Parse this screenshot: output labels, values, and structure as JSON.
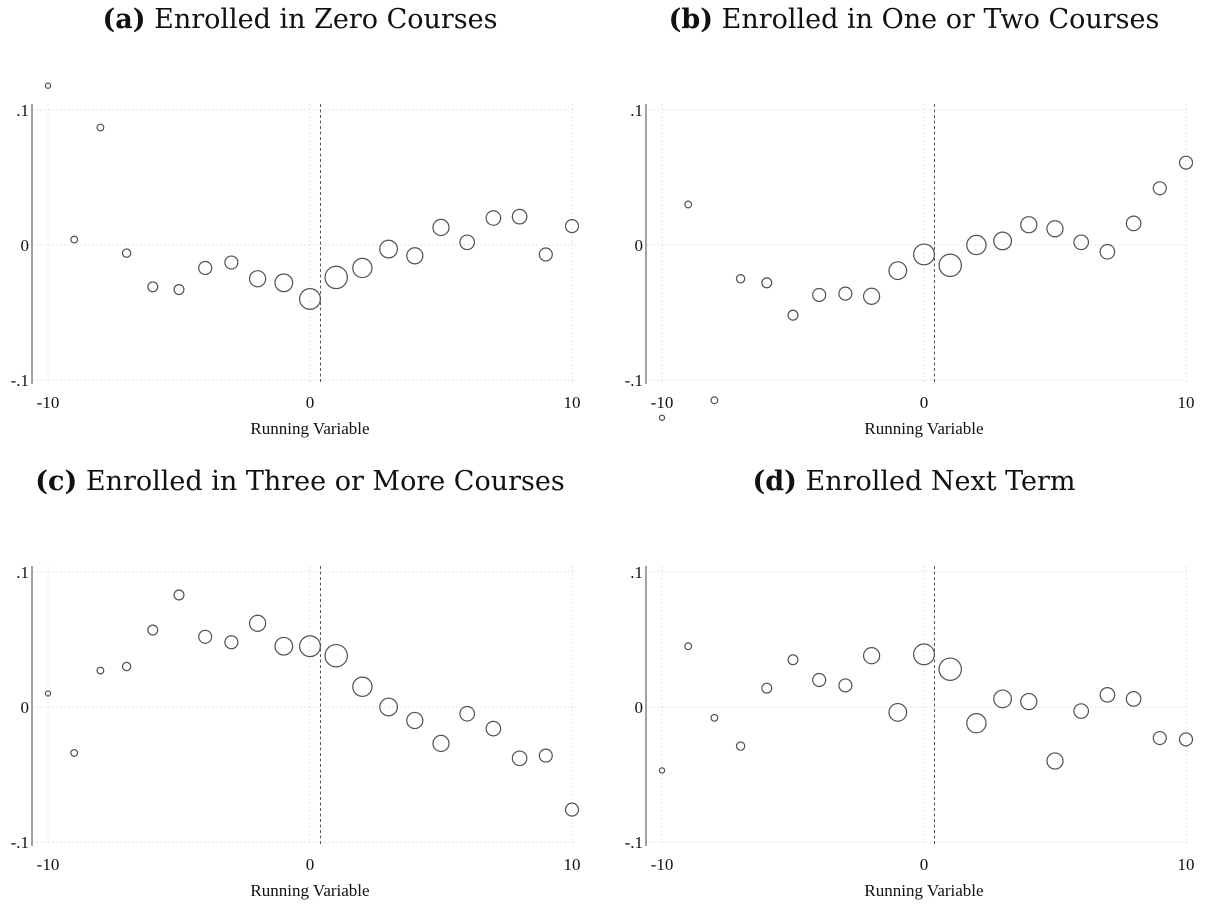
{
  "chart_data": [
    {
      "type": "scatter",
      "label": "(a)",
      "title": "Enrolled in Zero Courses",
      "xlabel": "Running Variable",
      "ylabel": "",
      "xlim": [
        -10,
        10
      ],
      "ylim": [
        -0.1,
        0.1
      ],
      "x_ticks": [
        -10,
        0,
        10
      ],
      "x_tick_labels": [
        "-10",
        "0",
        "10"
      ],
      "y_ticks": [
        -0.1,
        0,
        0.1
      ],
      "y_tick_labels": [
        "-.1",
        "0",
        ".1"
      ],
      "grid": true,
      "cutoff_x": 0.4,
      "x": [
        -10,
        -9,
        -8,
        -7,
        -6,
        -5,
        -4,
        -3,
        -2,
        -1,
        0,
        1,
        2,
        3,
        4,
        5,
        6,
        7,
        8,
        9,
        10
      ],
      "y": [
        0.118,
        0.004,
        0.087,
        -0.006,
        -0.031,
        -0.033,
        -0.017,
        -0.013,
        -0.025,
        -0.028,
        -0.04,
        -0.024,
        -0.017,
        -0.003,
        -0.008,
        0.013,
        0.002,
        0.02,
        0.021,
        -0.007,
        0.014
      ],
      "size": [
        1,
        2,
        2,
        3,
        4,
        4,
        6,
        6,
        8,
        9,
        11,
        12,
        10,
        9,
        8,
        8,
        7,
        7,
        7,
        6,
        6
      ]
    },
    {
      "type": "scatter",
      "label": "(b)",
      "title": "Enrolled in One or Two Courses",
      "xlabel": "Running Variable",
      "ylabel": "",
      "xlim": [
        -10,
        10
      ],
      "ylim": [
        -0.1,
        0.1
      ],
      "x_ticks": [
        -10,
        0,
        10
      ],
      "x_tick_labels": [
        "-10",
        "0",
        "10"
      ],
      "y_ticks": [
        -0.1,
        0,
        0.1
      ],
      "y_tick_labels": [
        "-.1",
        "0",
        ".1"
      ],
      "grid": true,
      "cutoff_x": 0.4,
      "x": [
        -10,
        -9,
        -8,
        -7,
        -6,
        -5,
        -4,
        -3,
        -2,
        -1,
        0,
        1,
        2,
        3,
        4,
        5,
        6,
        7,
        8,
        9,
        10
      ],
      "y": [
        -0.128,
        0.03,
        -0.115,
        -0.025,
        -0.028,
        -0.052,
        -0.037,
        -0.036,
        -0.038,
        -0.019,
        -0.007,
        -0.015,
        0.0,
        0.003,
        0.015,
        0.012,
        0.002,
        -0.005,
        0.016,
        0.042,
        0.061
      ],
      "size": [
        1,
        2,
        2,
        3,
        4,
        4,
        6,
        6,
        8,
        9,
        11,
        12,
        10,
        9,
        8,
        8,
        7,
        7,
        7,
        6,
        6
      ]
    },
    {
      "type": "scatter",
      "label": "(c)",
      "title": "Enrolled in Three or More Courses",
      "xlabel": "Running Variable",
      "ylabel": "",
      "xlim": [
        -10,
        10
      ],
      "ylim": [
        -0.1,
        0.1
      ],
      "x_ticks": [
        -10,
        0,
        10
      ],
      "x_tick_labels": [
        "-10",
        "0",
        "10"
      ],
      "y_ticks": [
        -0.1,
        0,
        0.1
      ],
      "y_tick_labels": [
        "-.1",
        "0",
        ".1"
      ],
      "grid": true,
      "cutoff_x": 0.4,
      "x": [
        -10,
        -9,
        -8,
        -7,
        -6,
        -5,
        -4,
        -3,
        -2,
        -1,
        0,
        1,
        2,
        3,
        4,
        5,
        6,
        7,
        8,
        9,
        10
      ],
      "y": [
        0.01,
        -0.034,
        0.027,
        0.03,
        0.057,
        0.083,
        0.052,
        0.048,
        0.062,
        0.045,
        0.045,
        0.038,
        0.015,
        0.0,
        -0.01,
        -0.027,
        -0.005,
        -0.016,
        -0.038,
        -0.036,
        -0.076
      ],
      "size": [
        1,
        2,
        2,
        3,
        4,
        4,
        6,
        6,
        8,
        9,
        11,
        12,
        10,
        9,
        8,
        8,
        7,
        7,
        7,
        6,
        6
      ]
    },
    {
      "type": "scatter",
      "label": "(d)",
      "title": "Enrolled Next Term",
      "xlabel": "Running Variable",
      "ylabel": "",
      "xlim": [
        -10,
        10
      ],
      "ylim": [
        -0.1,
        0.1
      ],
      "x_ticks": [
        -10,
        0,
        10
      ],
      "x_tick_labels": [
        "-10",
        "0",
        "10"
      ],
      "y_ticks": [
        -0.1,
        0,
        0.1
      ],
      "y_tick_labels": [
        "-.1",
        "0",
        ".1"
      ],
      "grid": true,
      "cutoff_x": 0.4,
      "x": [
        -10,
        -9,
        -8,
        -7,
        -6,
        -5,
        -4,
        -3,
        -2,
        -1,
        0,
        1,
        2,
        3,
        4,
        5,
        6,
        7,
        8,
        9,
        10
      ],
      "y": [
        -0.047,
        0.045,
        -0.008,
        -0.029,
        0.014,
        0.035,
        0.02,
        0.016,
        0.038,
        -0.004,
        0.039,
        0.028,
        -0.012,
        0.006,
        0.004,
        -0.04,
        -0.003,
        0.009,
        0.006,
        -0.023,
        -0.024
      ],
      "size": [
        1,
        2,
        2,
        3,
        4,
        4,
        6,
        6,
        8,
        9,
        11,
        12,
        10,
        9,
        8,
        8,
        7,
        7,
        7,
        6,
        6
      ]
    }
  ]
}
